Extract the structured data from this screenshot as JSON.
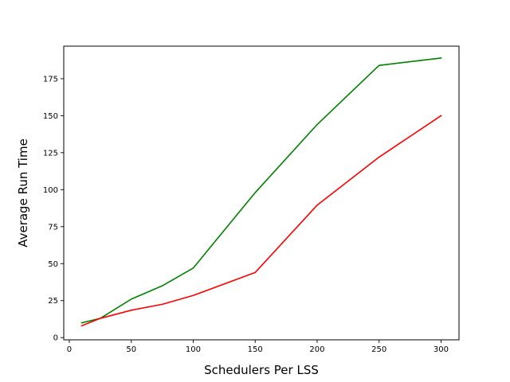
{
  "chart_data": {
    "type": "line",
    "title": "",
    "xlabel": "Schedulers Per LSS",
    "ylabel": "Average Run Time",
    "xlim": [
      -4.5,
      314.5
    ],
    "ylim": [
      -1.5,
      197
    ],
    "xticks": [
      0,
      50,
      100,
      150,
      200,
      250,
      300
    ],
    "yticks": [
      0,
      25,
      50,
      75,
      100,
      125,
      150,
      175
    ],
    "grid": false,
    "legend": "none",
    "series": [
      {
        "color": "#008000",
        "x": [
          10,
          25,
          50,
          75,
          100,
          150,
          200,
          250,
          300
        ],
        "y": [
          10,
          13,
          26,
          35,
          47,
          98,
          144,
          184,
          189
        ]
      },
      {
        "color": "#ff0000",
        "x": [
          10,
          25,
          50,
          75,
          100,
          150,
          200,
          250,
          300
        ],
        "y": [
          8,
          13,
          18.5,
          22.5,
          28.5,
          44,
          89.5,
          122,
          150
        ]
      }
    ]
  }
}
